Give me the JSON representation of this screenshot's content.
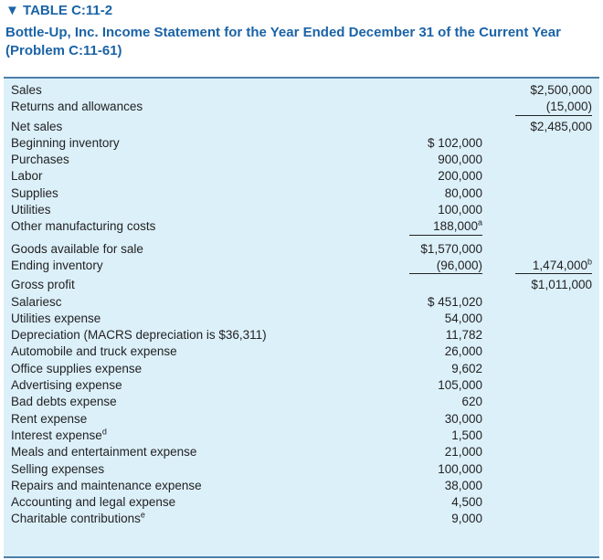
{
  "header": {
    "label": "▼ TABLE C:11-2",
    "title": "Bottle-Up, Inc. Income Statement for the Year Ended December 31 of the Current Year (Problem C:11-61)"
  },
  "table": {
    "rows": [
      {
        "label": "Sales",
        "total": "$2,500,000"
      },
      {
        "label": "Returns and allowances",
        "total": "(15,000)"
      },
      {
        "label": "Net sales",
        "total": "$2,485,000"
      },
      {
        "label": "Beginning inventory",
        "amount": "$ 102,000"
      },
      {
        "label": "Purchases",
        "amount": "900,000"
      },
      {
        "label": "Labor",
        "amount": "200,000"
      },
      {
        "label": "Supplies",
        "amount": "80,000"
      },
      {
        "label": "Utilities",
        "amount": "100,000"
      },
      {
        "label": "Other manufacturing costs",
        "amount": "188,000",
        "amount_note": "a"
      },
      {
        "label": "Goods available for sale",
        "amount": "$1,570,000"
      },
      {
        "label": "Ending inventory",
        "amount": "(96,000)",
        "total": "1,474,000",
        "total_note": "b"
      },
      {
        "label": "Gross profit",
        "total": "$1,011,000"
      },
      {
        "label": "Salariesc",
        "amount": "$ 451,020"
      },
      {
        "label": "Utilities expense",
        "amount": "54,000"
      },
      {
        "label": "Depreciation (MACRS depreciation is $36,311)",
        "amount": "11,782"
      },
      {
        "label": "Automobile and truck expense",
        "amount": "26,000"
      },
      {
        "label": "Office supplies expense",
        "amount": "9,602"
      },
      {
        "label": "Advertising expense",
        "amount": "105,000"
      },
      {
        "label": "Bad debts expense",
        "amount": "620"
      },
      {
        "label": "Rent expense",
        "amount": "30,000"
      },
      {
        "label": "Interest expense",
        "label_note": "d",
        "amount": "1,500"
      },
      {
        "label": "Meals and entertainment expense",
        "amount": "21,000"
      },
      {
        "label": "Selling expenses",
        "amount": "100,000"
      },
      {
        "label": "Repairs and maintenance expense",
        "amount": "38,000"
      },
      {
        "label": "Accounting and legal expense",
        "amount": "4,500"
      },
      {
        "label": "Charitable contributions",
        "label_note": "e",
        "amount": "9,000"
      }
    ]
  }
}
